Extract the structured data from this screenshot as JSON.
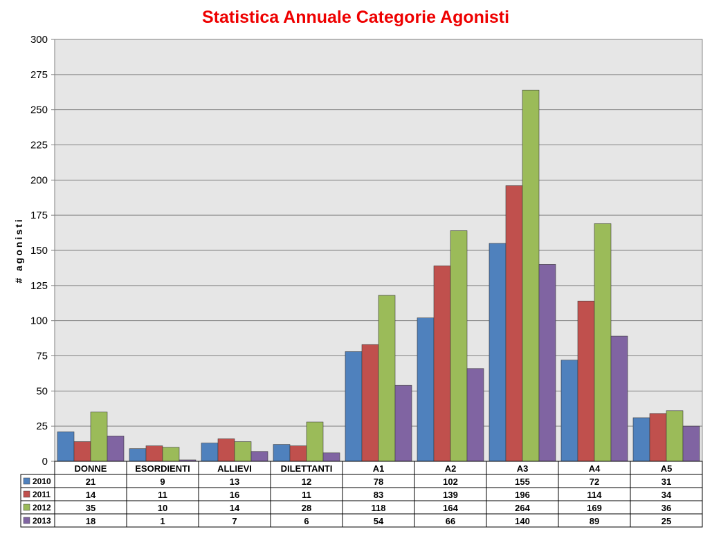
{
  "chart_data": {
    "type": "bar",
    "title": "Statistica Annuale Categorie Agonisti",
    "title_color": "#ee0000",
    "ylabel": "# agonisti",
    "xlabel": "",
    "ylim": [
      0,
      300
    ],
    "yticks": [
      0,
      25,
      50,
      75,
      100,
      125,
      150,
      175,
      200,
      225,
      250,
      275,
      300
    ],
    "grid": true,
    "legend": "data-table-left",
    "plot_background": "#e6e6e6",
    "categories": [
      "DONNE",
      "ESORDIENTI",
      "ALLIEVI",
      "DILETTANTI",
      "A1",
      "A2",
      "A3",
      "A4",
      "A5"
    ],
    "series": [
      {
        "name": "2010",
        "color": "#4f81bd",
        "values": [
          21,
          9,
          13,
          12,
          78,
          102,
          155,
          72,
          31
        ]
      },
      {
        "name": "2011",
        "color": "#c0504d",
        "values": [
          14,
          11,
          16,
          11,
          83,
          139,
          196,
          114,
          34
        ]
      },
      {
        "name": "2012",
        "color": "#9bbb59",
        "values": [
          35,
          10,
          14,
          28,
          118,
          164,
          264,
          169,
          36
        ]
      },
      {
        "name": "2013",
        "color": "#8064a2",
        "values": [
          18,
          1,
          7,
          6,
          54,
          66,
          140,
          89,
          25
        ]
      }
    ]
  }
}
